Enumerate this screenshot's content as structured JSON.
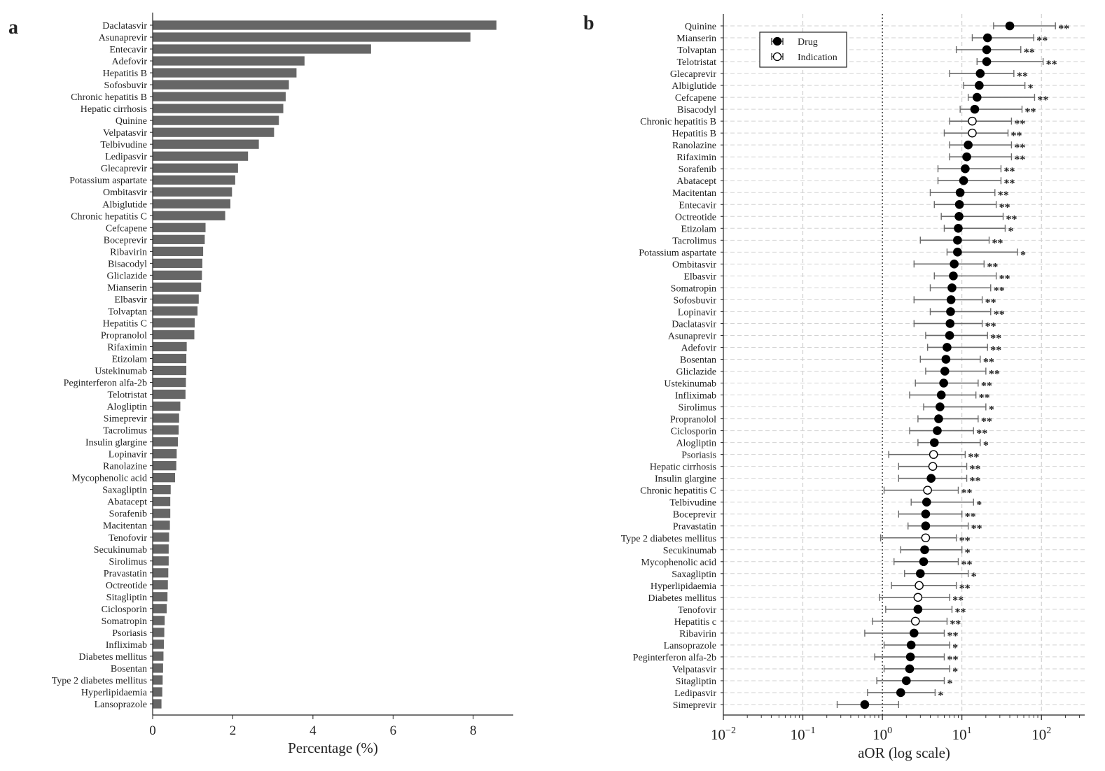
{
  "panels": {
    "a": "a",
    "b": "b"
  },
  "chart_data": [
    {
      "type": "bar",
      "orientation": "horizontal",
      "panel": "a",
      "title": "",
      "xlabel": "Percentage (%)",
      "ylabel": "",
      "xlim": [
        0,
        9
      ],
      "xticks": [
        "0",
        "2",
        "4",
        "6",
        "8"
      ],
      "bar_color": "#666666",
      "categories": [
        "Daclatasvir",
        "Asunaprevir",
        "Entecavir",
        "Adefovir",
        "Hepatitis B",
        "Sofosbuvir",
        "Chronic hepatitis B",
        "Hepatic cirrhosis",
        "Quinine",
        "Velpatasvir",
        "Telbivudine",
        "Ledipasvir",
        "Glecaprevir",
        "Potassium aspartate",
        "Ombitasvir",
        "Albiglutide",
        "Chronic hepatitis C",
        "Cefcapene",
        "Boceprevir",
        "Ribavirin",
        "Bisacodyl",
        "Gliclazide",
        "Mianserin",
        "Elbasvir",
        "Tolvaptan",
        "Hepatitis C",
        "Propranolol",
        "Rifaximin",
        "Etizolam",
        "Ustekinumab",
        "Peginterferon alfa-2b",
        "Telotristat",
        "Alogliptin",
        "Simeprevir",
        "Tacrolimus",
        "Insulin glargine",
        "Lopinavir",
        "Ranolazine",
        "Mycophenolic acid",
        "Saxagliptin",
        "Abatacept",
        "Sorafenib",
        "Macitentan",
        "Tenofovir",
        "Secukinumab",
        "Sirolimus",
        "Pravastatin",
        "Octreotide",
        "Sitagliptin",
        "Ciclosporin",
        "Somatropin",
        "Psoriasis",
        "Infliximab",
        "Diabetes mellitus",
        "Bosentan",
        "Type 2 diabetes mellitus",
        "Hyperlipidaemia",
        "Lansoprazole"
      ],
      "values": [
        8.58,
        7.93,
        5.45,
        3.79,
        3.59,
        3.4,
        3.32,
        3.26,
        3.15,
        3.03,
        2.65,
        2.38,
        2.13,
        2.06,
        1.98,
        1.94,
        1.81,
        1.32,
        1.3,
        1.26,
        1.24,
        1.23,
        1.21,
        1.15,
        1.12,
        1.05,
        1.04,
        0.85,
        0.84,
        0.84,
        0.83,
        0.82,
        0.69,
        0.66,
        0.65,
        0.63,
        0.6,
        0.59,
        0.56,
        0.45,
        0.44,
        0.44,
        0.43,
        0.41,
        0.4,
        0.4,
        0.39,
        0.38,
        0.37,
        0.35,
        0.3,
        0.29,
        0.28,
        0.27,
        0.26,
        0.25,
        0.24,
        0.22
      ]
    },
    {
      "type": "forest",
      "panel": "b",
      "title": "",
      "xlabel": "aOR (log scale)",
      "xscale": "log",
      "xlim": [
        0.01,
        350
      ],
      "xticks": [
        {
          "base": "10",
          "exp": "−2"
        },
        {
          "base": "10",
          "exp": "−1"
        },
        {
          "base": "10",
          "exp": "0"
        },
        {
          "base": "10",
          "exp": "1"
        },
        {
          "base": "10",
          "exp": "2"
        }
      ],
      "reference_line": 1,
      "grid": true,
      "legend": {
        "position": "top-left",
        "items": [
          {
            "label": "Drug",
            "marker": "filled"
          },
          {
            "label": "Indication",
            "marker": "open"
          }
        ]
      },
      "rows": [
        {
          "label": "Quinine",
          "type": "Drug",
          "aor": 40,
          "lo": 25,
          "hi": 150,
          "sig": "**"
        },
        {
          "label": "Mianserin",
          "type": "Drug",
          "aor": 21,
          "lo": 13.5,
          "hi": 80,
          "sig": "**"
        },
        {
          "label": "Tolvaptan",
          "type": "Drug",
          "aor": 20.5,
          "lo": 8.5,
          "hi": 55,
          "sig": "**"
        },
        {
          "label": "Telotristat",
          "type": "Drug",
          "aor": 20.5,
          "lo": 15.5,
          "hi": 105,
          "sig": "**"
        },
        {
          "label": "Glecaprevir",
          "type": "Drug",
          "aor": 17,
          "lo": 7,
          "hi": 45,
          "sig": "**"
        },
        {
          "label": "Albiglutide",
          "type": "Drug",
          "aor": 16.5,
          "lo": 10.5,
          "hi": 62,
          "sig": "*"
        },
        {
          "label": "Cefcapene",
          "type": "Drug",
          "aor": 15.5,
          "lo": 12,
          "hi": 82,
          "sig": "**"
        },
        {
          "label": "Bisacodyl",
          "type": "Drug",
          "aor": 14.5,
          "lo": 9.5,
          "hi": 57,
          "sig": "**"
        },
        {
          "label": "Chronic hepatitis B",
          "type": "Indication",
          "aor": 13.5,
          "lo": 7,
          "hi": 42,
          "sig": "**"
        },
        {
          "label": "Hepatitis B",
          "type": "Indication",
          "aor": 13.5,
          "lo": 6,
          "hi": 38,
          "sig": "**"
        },
        {
          "label": "Ranolazine",
          "type": "Drug",
          "aor": 12,
          "lo": 7,
          "hi": 42,
          "sig": "**"
        },
        {
          "label": "Rifaximin",
          "type": "Drug",
          "aor": 11.5,
          "lo": 7,
          "hi": 42,
          "sig": "**"
        },
        {
          "label": "Sorafenib",
          "type": "Drug",
          "aor": 11,
          "lo": 5,
          "hi": 31,
          "sig": "**"
        },
        {
          "label": "Abatacept",
          "type": "Drug",
          "aor": 10.5,
          "lo": 5,
          "hi": 31,
          "sig": "**"
        },
        {
          "label": "Macitentan",
          "type": "Drug",
          "aor": 9.5,
          "lo": 4,
          "hi": 26,
          "sig": "**"
        },
        {
          "label": "Entecavir",
          "type": "Drug",
          "aor": 9.3,
          "lo": 4.5,
          "hi": 27,
          "sig": "**"
        },
        {
          "label": "Octreotide",
          "type": "Drug",
          "aor": 9.2,
          "lo": 5.5,
          "hi": 33,
          "sig": "**"
        },
        {
          "label": "Etizolam",
          "type": "Drug",
          "aor": 9,
          "lo": 6,
          "hi": 35,
          "sig": "*"
        },
        {
          "label": "Tacrolimus",
          "type": "Drug",
          "aor": 8.8,
          "lo": 3,
          "hi": 22,
          "sig": "**"
        },
        {
          "label": "Potassium aspartate",
          "type": "Drug",
          "aor": 8.8,
          "lo": 6.5,
          "hi": 50,
          "sig": "*"
        },
        {
          "label": "Ombitasvir",
          "type": "Drug",
          "aor": 8,
          "lo": 2.5,
          "hi": 19,
          "sig": "**"
        },
        {
          "label": "Elbasvir",
          "type": "Drug",
          "aor": 7.8,
          "lo": 4.5,
          "hi": 27,
          "sig": "**"
        },
        {
          "label": "Somatropin",
          "type": "Drug",
          "aor": 7.5,
          "lo": 4,
          "hi": 23,
          "sig": "**"
        },
        {
          "label": "Sofosbuvir",
          "type": "Drug",
          "aor": 7.3,
          "lo": 2.5,
          "hi": 18,
          "sig": "**"
        },
        {
          "label": "Lopinavir",
          "type": "Drug",
          "aor": 7.2,
          "lo": 4,
          "hi": 23,
          "sig": "**"
        },
        {
          "label": "Daclatasvir",
          "type": "Drug",
          "aor": 7.1,
          "lo": 2.5,
          "hi": 18,
          "sig": "**"
        },
        {
          "label": "Asunaprevir",
          "type": "Drug",
          "aor": 7,
          "lo": 3.5,
          "hi": 21,
          "sig": "**"
        },
        {
          "label": "Adefovir",
          "type": "Drug",
          "aor": 6.5,
          "lo": 3.7,
          "hi": 21,
          "sig": "**"
        },
        {
          "label": "Bosentan",
          "type": "Drug",
          "aor": 6.3,
          "lo": 3,
          "hi": 17,
          "sig": "**"
        },
        {
          "label": "Gliclazide",
          "type": "Drug",
          "aor": 6.1,
          "lo": 3.5,
          "hi": 20,
          "sig": "**"
        },
        {
          "label": "Ustekinumab",
          "type": "Drug",
          "aor": 5.9,
          "lo": 2.6,
          "hi": 16,
          "sig": "**"
        },
        {
          "label": "Infliximab",
          "type": "Drug",
          "aor": 5.5,
          "lo": 2.2,
          "hi": 15,
          "sig": "**"
        },
        {
          "label": "Sirolimus",
          "type": "Drug",
          "aor": 5.3,
          "lo": 3.3,
          "hi": 20,
          "sig": "*"
        },
        {
          "label": "Propranolol",
          "type": "Drug",
          "aor": 5.1,
          "lo": 2.8,
          "hi": 16,
          "sig": "**"
        },
        {
          "label": "Ciclosporin",
          "type": "Drug",
          "aor": 4.9,
          "lo": 2.2,
          "hi": 14,
          "sig": "**"
        },
        {
          "label": "Alogliptin",
          "type": "Drug",
          "aor": 4.5,
          "lo": 2.8,
          "hi": 17,
          "sig": "*"
        },
        {
          "label": "Psoriasis",
          "type": "Indication",
          "aor": 4.4,
          "lo": 1.2,
          "hi": 11,
          "sig": "**"
        },
        {
          "label": "Hepatic cirrhosis",
          "type": "Indication",
          "aor": 4.3,
          "lo": 1.6,
          "hi": 11.5,
          "sig": "**"
        },
        {
          "label": "Insulin glargine",
          "type": "Drug",
          "aor": 4.1,
          "lo": 1.6,
          "hi": 11.5,
          "sig": "**"
        },
        {
          "label": "Chronic hepatitis C",
          "type": "Indication",
          "aor": 3.7,
          "lo": 1.05,
          "hi": 9,
          "sig": "**"
        },
        {
          "label": "Telbivudine",
          "type": "Drug",
          "aor": 3.6,
          "lo": 2.3,
          "hi": 14,
          "sig": "*"
        },
        {
          "label": "Boceprevir",
          "type": "Drug",
          "aor": 3.5,
          "lo": 1.6,
          "hi": 10,
          "sig": "**"
        },
        {
          "label": "Pravastatin",
          "type": "Drug",
          "aor": 3.5,
          "lo": 2.1,
          "hi": 12,
          "sig": "**"
        },
        {
          "label": "Type 2 diabetes mellitus",
          "type": "Indication",
          "aor": 3.5,
          "lo": 0.95,
          "hi": 8.5,
          "sig": "**"
        },
        {
          "label": "Secukinumab",
          "type": "Drug",
          "aor": 3.4,
          "lo": 1.7,
          "hi": 10,
          "sig": "*"
        },
        {
          "label": "Mycophenolic acid",
          "type": "Drug",
          "aor": 3.3,
          "lo": 1.4,
          "hi": 9,
          "sig": "**"
        },
        {
          "label": "Saxagliptin",
          "type": "Drug",
          "aor": 3,
          "lo": 1.9,
          "hi": 12,
          "sig": "*"
        },
        {
          "label": "Hyperlipidaemia",
          "type": "Indication",
          "aor": 2.9,
          "lo": 1.3,
          "hi": 8.5,
          "sig": "**"
        },
        {
          "label": "Diabetes mellitus",
          "type": "Indication",
          "aor": 2.8,
          "lo": 0.92,
          "hi": 7,
          "sig": "**"
        },
        {
          "label": "Tenofovir",
          "type": "Drug",
          "aor": 2.8,
          "lo": 1.1,
          "hi": 7.5,
          "sig": "**"
        },
        {
          "label": "Hepatitis c",
          "type": "Indication",
          "aor": 2.6,
          "lo": 0.75,
          "hi": 6.5,
          "sig": "**"
        },
        {
          "label": "Ribavirin",
          "type": "Drug",
          "aor": 2.5,
          "lo": 0.6,
          "hi": 6,
          "sig": "**"
        },
        {
          "label": "Lansoprazole",
          "type": "Drug",
          "aor": 2.3,
          "lo": 1.05,
          "hi": 7,
          "sig": "*"
        },
        {
          "label": "Peginterferon alfa-2b",
          "type": "Drug",
          "aor": 2.25,
          "lo": 0.8,
          "hi": 6,
          "sig": "**"
        },
        {
          "label": "Velpatasvir",
          "type": "Drug",
          "aor": 2.2,
          "lo": 1.05,
          "hi": 7,
          "sig": "*"
        },
        {
          "label": "Sitagliptin",
          "type": "Drug",
          "aor": 2,
          "lo": 0.85,
          "hi": 6,
          "sig": "*"
        },
        {
          "label": "Ledipasvir",
          "type": "Drug",
          "aor": 1.7,
          "lo": 0.65,
          "hi": 4.6,
          "sig": "*"
        },
        {
          "label": "Simeprevir",
          "type": "Drug",
          "aor": 0.6,
          "lo": 0.27,
          "hi": 1.6,
          "sig": ""
        }
      ]
    }
  ]
}
